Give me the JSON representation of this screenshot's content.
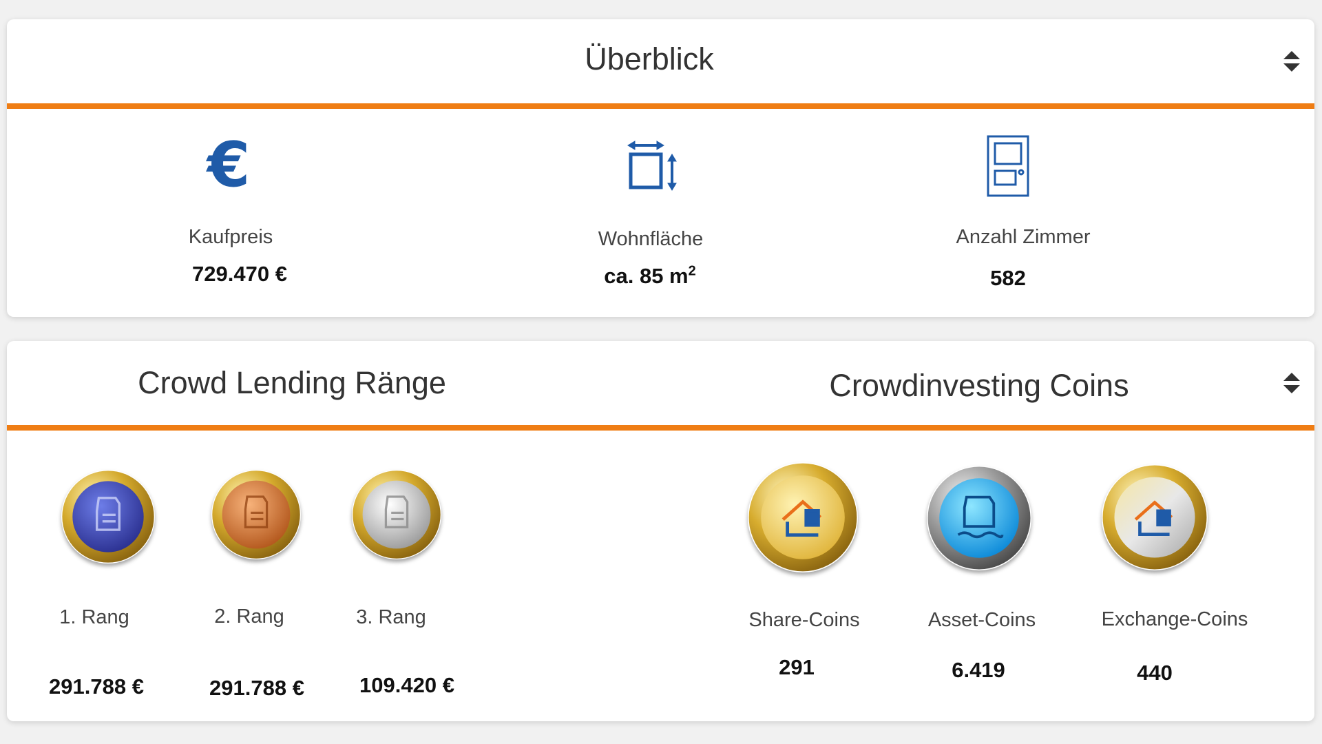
{
  "overview": {
    "title": "Überblick",
    "stats": [
      {
        "icon": "euro-icon",
        "label": "Kaufpreis",
        "value": "729.470 €"
      },
      {
        "icon": "area-icon",
        "label": "Wohnfläche",
        "value_main": "ca. 85 m",
        "value_sup": "2"
      },
      {
        "icon": "door-icon",
        "label": "Anzahl Zimmer",
        "value": "582"
      }
    ]
  },
  "crowd": {
    "lending_title": "Crowd Lending Ränge",
    "investing_title": "Crowdinvesting Coins",
    "ranks": [
      {
        "label": "1. Rang",
        "value": "291.788 €",
        "coin": "blue-rank-coin-icon"
      },
      {
        "label": "2. Rang",
        "value": "291.788 €",
        "coin": "bronze-rank-coin-icon"
      },
      {
        "label": "3. Rang",
        "value": "109.420 €",
        "coin": "silver-rank-coin-icon"
      }
    ],
    "coins": [
      {
        "label": "Share-Coins",
        "value": "291",
        "coin": "gold-share-coin-icon"
      },
      {
        "label": "Asset-Coins",
        "value": "6.419",
        "coin": "blue-asset-coin-icon"
      },
      {
        "label": "Exchange-Coins",
        "value": "440",
        "coin": "exchange-coin-icon"
      }
    ]
  },
  "colors": {
    "accent": "#ef7d14",
    "icon_blue": "#1f5ba8"
  }
}
